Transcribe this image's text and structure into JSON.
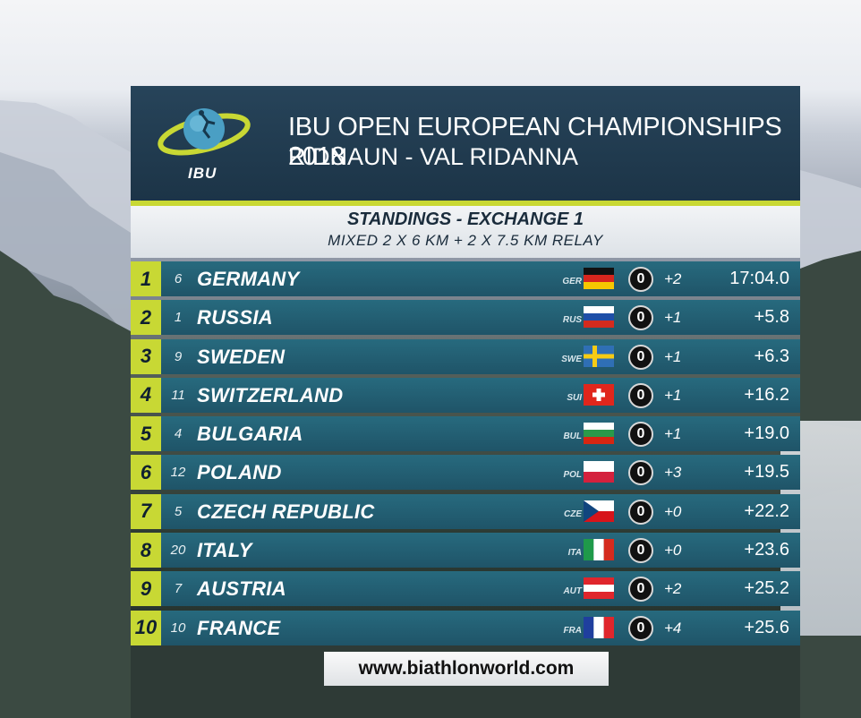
{
  "header": {
    "logo_text": "IBU",
    "title": "IBU OPEN EUROPEAN CHAMPIONSHIPS 2018",
    "subtitle": "RIDNAUN - VAL RIDANNA"
  },
  "subheader": {
    "line1": "STANDINGS - EXCHANGE 1",
    "line2": "MIXED 2 X 6 KM + 2 X 7.5 KM RELAY"
  },
  "standings": [
    {
      "rank": "1",
      "bib": "6",
      "name": "GERMANY",
      "code": "GER",
      "flag": "flag-germany",
      "penalty": "0",
      "spare": "+2",
      "time": "17:04.0"
    },
    {
      "rank": "2",
      "bib": "1",
      "name": "RUSSIA",
      "code": "RUS",
      "flag": "flag-russia",
      "penalty": "0",
      "spare": "+1",
      "time": "+5.8"
    },
    {
      "rank": "3",
      "bib": "9",
      "name": "SWEDEN",
      "code": "SWE",
      "flag": "flag-sweden",
      "penalty": "0",
      "spare": "+1",
      "time": "+6.3"
    },
    {
      "rank": "4",
      "bib": "11",
      "name": "SWITZERLAND",
      "code": "SUI",
      "flag": "flag-switzerland",
      "penalty": "0",
      "spare": "+1",
      "time": "+16.2"
    },
    {
      "rank": "5",
      "bib": "4",
      "name": "BULGARIA",
      "code": "BUL",
      "flag": "flag-bulgaria",
      "penalty": "0",
      "spare": "+1",
      "time": "+19.0"
    },
    {
      "rank": "6",
      "bib": "12",
      "name": "POLAND",
      "code": "POL",
      "flag": "flag-poland",
      "penalty": "0",
      "spare": "+3",
      "time": "+19.5"
    },
    {
      "rank": "7",
      "bib": "5",
      "name": "CZECH REPUBLIC",
      "code": "CZE",
      "flag": "flag-czech",
      "penalty": "0",
      "spare": "+0",
      "time": "+22.2"
    },
    {
      "rank": "8",
      "bib": "20",
      "name": "ITALY",
      "code": "ITA",
      "flag": "flag-italy",
      "penalty": "0",
      "spare": "+0",
      "time": "+23.6"
    },
    {
      "rank": "9",
      "bib": "7",
      "name": "AUSTRIA",
      "code": "AUT",
      "flag": "flag-austria",
      "penalty": "0",
      "spare": "+2",
      "time": "+25.2"
    },
    {
      "rank": "10",
      "bib": "10",
      "name": "FRANCE",
      "code": "FRA",
      "flag": "flag-france",
      "penalty": "0",
      "spare": "+4",
      "time": "+25.6"
    }
  ],
  "footer": {
    "url": "www.biathlonworld.com"
  },
  "colors": {
    "accent": "#c8d834",
    "row": "#235f73",
    "header": "#223c50"
  }
}
